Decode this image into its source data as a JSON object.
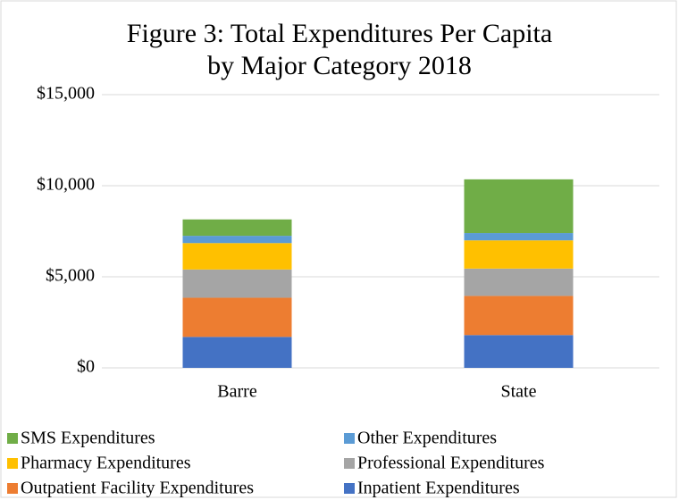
{
  "chart_data": {
    "type": "stacked_bar",
    "title": [
      "Figure 3: Total Expenditures Per Capita",
      "by Major Category 2018"
    ],
    "categories": [
      "Barre",
      "State"
    ],
    "series": [
      {
        "name": "Inpatient Expenditures",
        "color": "#4472c4",
        "values": [
          1700,
          1800
        ]
      },
      {
        "name": "Outpatient Facility Expenditures",
        "color": "#ed7d31",
        "values": [
          2150,
          2150
        ]
      },
      {
        "name": "Professional Expenditures",
        "color": "#a5a5a5",
        "values": [
          1550,
          1500
        ]
      },
      {
        "name": "Pharmacy Expenditures",
        "color": "#ffc000",
        "values": [
          1450,
          1550
        ]
      },
      {
        "name": "Other Expenditures",
        "color": "#5b9bd5",
        "values": [
          400,
          400
        ]
      },
      {
        "name": "SMS Expenditures",
        "color": "#70ad47",
        "values": [
          900,
          2950
        ]
      }
    ],
    "ylim": [
      0,
      15000
    ],
    "yticks": [
      {
        "value": 0,
        "label": "$0"
      },
      {
        "value": 5000,
        "label": "$5,000"
      },
      {
        "value": 10000,
        "label": "$10,000"
      },
      {
        "value": 15000,
        "label": "$15,000"
      }
    ],
    "grid": true,
    "legend": "bottom"
  }
}
